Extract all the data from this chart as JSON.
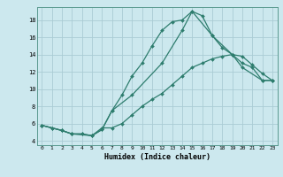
{
  "xlabel": "Humidex (Indice chaleur)",
  "background_color": "#cce8ee",
  "grid_color": "#aaccd4",
  "line_color": "#2e7d6e",
  "xlim": [
    -0.5,
    23.5
  ],
  "ylim": [
    3.5,
    19.5
  ],
  "xticks": [
    0,
    1,
    2,
    3,
    4,
    5,
    6,
    7,
    8,
    9,
    10,
    11,
    12,
    13,
    14,
    15,
    16,
    17,
    18,
    19,
    20,
    21,
    22,
    23
  ],
  "yticks": [
    4,
    6,
    8,
    10,
    12,
    14,
    16,
    18
  ],
  "line1_x": [
    0,
    1,
    2,
    3,
    4,
    5,
    6,
    7,
    8,
    9,
    10,
    11,
    12,
    13,
    14,
    15,
    16,
    17,
    18,
    19,
    20,
    21,
    22,
    23
  ],
  "line1_y": [
    5.8,
    5.5,
    5.2,
    4.8,
    4.8,
    4.6,
    5.3,
    7.5,
    9.3,
    11.5,
    13.0,
    15.0,
    16.8,
    17.8,
    18.0,
    19.0,
    18.5,
    16.2,
    14.8,
    14.0,
    13.0,
    12.5,
    11.0,
    11.0
  ],
  "line2_x": [
    0,
    1,
    2,
    3,
    4,
    5,
    6,
    7,
    8,
    9,
    10,
    11,
    12,
    13,
    14,
    15,
    16,
    17,
    18,
    19,
    20,
    21,
    22,
    23
  ],
  "line2_y": [
    5.8,
    5.5,
    5.2,
    4.8,
    4.8,
    4.6,
    5.5,
    5.5,
    6.0,
    7.0,
    8.0,
    8.8,
    9.5,
    10.5,
    11.5,
    12.5,
    13.0,
    13.5,
    13.8,
    14.0,
    13.8,
    12.8,
    11.8,
    11.0
  ],
  "line3_x": [
    0,
    2,
    3,
    5,
    6,
    7,
    9,
    12,
    14,
    15,
    17,
    19,
    20,
    22,
    23
  ],
  "line3_y": [
    5.8,
    5.2,
    4.8,
    4.6,
    5.3,
    7.5,
    9.3,
    13.0,
    16.8,
    19.0,
    16.2,
    14.0,
    12.5,
    11.0,
    11.0
  ]
}
